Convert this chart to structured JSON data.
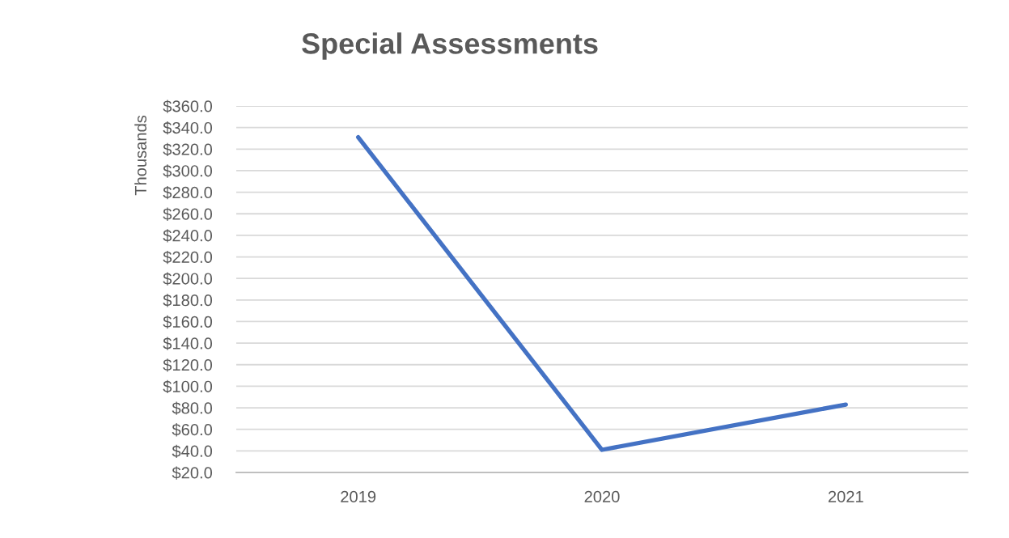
{
  "chart_data": {
    "type": "line",
    "title": "Special Assessments",
    "ylabel": "Thousands",
    "categories": [
      "2019",
      "2020",
      "2021"
    ],
    "series": [
      {
        "color": "#4472c4",
        "values": [
          331,
          41,
          83
        ]
      }
    ],
    "ylim": [
      20,
      360
    ],
    "yticks": [
      {
        "value": 20,
        "label": "$20.0"
      },
      {
        "value": 40,
        "label": "$40.0"
      },
      {
        "value": 60,
        "label": "$60.0"
      },
      {
        "value": 80,
        "label": "$80.0"
      },
      {
        "value": 100,
        "label": "$100.0"
      },
      {
        "value": 120,
        "label": "$120.0"
      },
      {
        "value": 140,
        "label": "$140.0"
      },
      {
        "value": 160,
        "label": "$160.0"
      },
      {
        "value": 180,
        "label": "$180.0"
      },
      {
        "value": 200,
        "label": "$200.0"
      },
      {
        "value": 220,
        "label": "$220.0"
      },
      {
        "value": 240,
        "label": "$240.0"
      },
      {
        "value": 260,
        "label": "$260.0"
      },
      {
        "value": 280,
        "label": "$280.0"
      },
      {
        "value": 300,
        "label": "$300.0"
      },
      {
        "value": 320,
        "label": "$320.0"
      },
      {
        "value": 340,
        "label": "$340.0"
      },
      {
        "value": 360,
        "label": "$360.0"
      }
    ],
    "grid": "y"
  }
}
